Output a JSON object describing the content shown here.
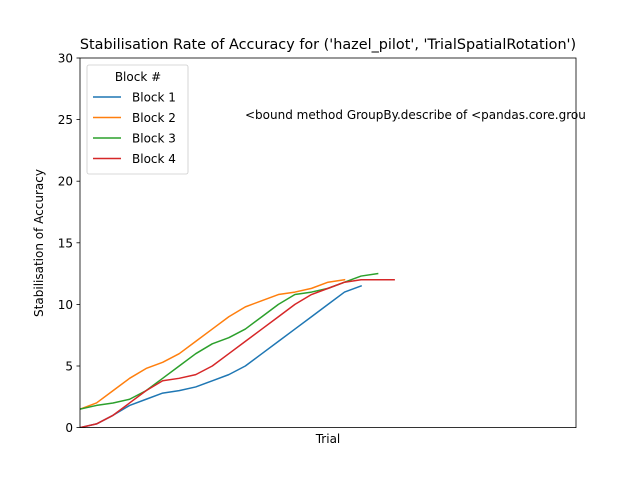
{
  "chart_data": {
    "type": "line",
    "title": "Stabilisation Rate of Accuracy for ('hazel_pilot', 'TrialSpatialRotation')",
    "xlabel": "Trial",
    "ylabel": "Stabilisation of Accuracy",
    "xlim": [
      0,
      30
    ],
    "ylim": [
      0,
      30
    ],
    "yticks": [
      0,
      5,
      10,
      15,
      20,
      25,
      30
    ],
    "xticks_shown": false,
    "grid": false,
    "legend": {
      "title": "Block #",
      "placement": "upper-left"
    },
    "annotation": {
      "text": "<bound method GroupBy.describe of <pandas.core.grou",
      "x": 10,
      "y": 25.2
    },
    "series": [
      {
        "name": "Block 1",
        "color": "#1f77b4",
        "x": [
          0,
          1,
          2,
          3,
          4,
          5,
          6,
          7,
          8,
          9,
          10,
          11,
          12,
          13,
          14,
          15,
          16,
          17
        ],
        "y": [
          0,
          0.3,
          1,
          1.8,
          2.3,
          2.8,
          3.0,
          3.3,
          3.8,
          4.3,
          5.0,
          6.0,
          7.0,
          8.0,
          9.0,
          10.0,
          11.0,
          11.5
        ]
      },
      {
        "name": "Block 2",
        "color": "#ff7f0e",
        "x": [
          0,
          1,
          2,
          3,
          4,
          5,
          6,
          7,
          8,
          9,
          10,
          11,
          12,
          13,
          14,
          15,
          16
        ],
        "y": [
          1.5,
          2.0,
          3.0,
          4.0,
          4.8,
          5.3,
          6.0,
          7.0,
          8.0,
          9.0,
          9.8,
          10.3,
          10.8,
          11.0,
          11.3,
          11.8,
          12.0
        ]
      },
      {
        "name": "Block 3",
        "color": "#2ca02c",
        "x": [
          0,
          1,
          2,
          3,
          4,
          5,
          6,
          7,
          8,
          9,
          10,
          11,
          12,
          13,
          14,
          15,
          16,
          17,
          18
        ],
        "y": [
          1.5,
          1.8,
          2.0,
          2.3,
          3.0,
          4.0,
          5.0,
          6.0,
          6.8,
          7.3,
          8.0,
          9.0,
          10.0,
          10.8,
          11.0,
          11.3,
          11.8,
          12.3,
          12.5
        ]
      },
      {
        "name": "Block 4",
        "color": "#d62728",
        "x": [
          0,
          1,
          2,
          3,
          4,
          5,
          6,
          7,
          8,
          9,
          10,
          11,
          12,
          13,
          14,
          15,
          16,
          17,
          18,
          19
        ],
        "y": [
          0,
          0.3,
          1.0,
          2.0,
          3.0,
          3.8,
          4.0,
          4.3,
          5.0,
          6.0,
          7.0,
          8.0,
          9.0,
          10.0,
          10.8,
          11.3,
          11.8,
          12.0,
          12.0,
          12.0
        ]
      }
    ]
  }
}
